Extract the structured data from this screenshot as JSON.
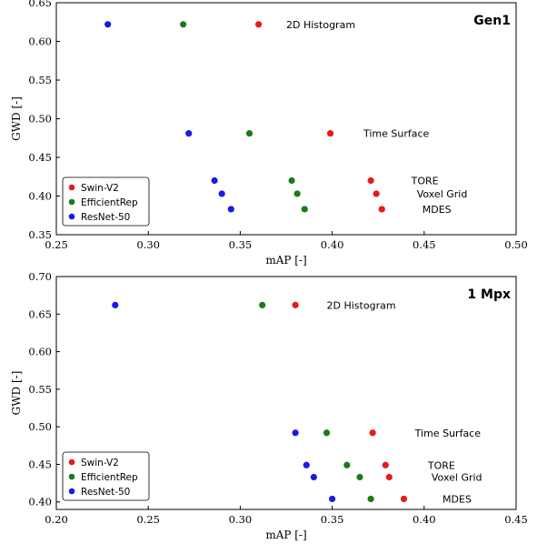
{
  "chart_data": [
    {
      "type": "scatter",
      "title": "Gen1",
      "xlabel": "mAP [-]",
      "ylabel": "GWD [-]",
      "xlim": [
        0.25,
        0.5
      ],
      "ylim": [
        0.35,
        0.65
      ],
      "xticks": [
        "0.25",
        "0.30",
        "0.35",
        "0.40",
        "0.45",
        "0.50"
      ],
      "yticks": [
        "0.35",
        "0.40",
        "0.45",
        "0.50",
        "0.55",
        "0.60",
        "0.65"
      ],
      "legend_position": "bottom-left",
      "series": [
        {
          "name": "Swin-V2",
          "color": "#e8191a",
          "points": [
            {
              "x": 0.36,
              "y": 0.622
            },
            {
              "x": 0.399,
              "y": 0.481
            },
            {
              "x": 0.421,
              "y": 0.42
            },
            {
              "x": 0.424,
              "y": 0.403
            },
            {
              "x": 0.427,
              "y": 0.383
            }
          ]
        },
        {
          "name": "EfficientRep",
          "color": "#1a7a1a",
          "points": [
            {
              "x": 0.319,
              "y": 0.622
            },
            {
              "x": 0.355,
              "y": 0.481
            },
            {
              "x": 0.378,
              "y": 0.42
            },
            {
              "x": 0.381,
              "y": 0.403
            },
            {
              "x": 0.385,
              "y": 0.383
            }
          ]
        },
        {
          "name": "ResNet-50",
          "color": "#1a1ae8",
          "points": [
            {
              "x": 0.278,
              "y": 0.622
            },
            {
              "x": 0.322,
              "y": 0.481
            },
            {
              "x": 0.336,
              "y": 0.42
            },
            {
              "x": 0.34,
              "y": 0.403
            },
            {
              "x": 0.345,
              "y": 0.383
            }
          ]
        }
      ],
      "annotations": [
        {
          "text": "2D Histogram",
          "x": 0.375,
          "y": 0.622
        },
        {
          "text": "Time Surface",
          "x": 0.417,
          "y": 0.481
        },
        {
          "text": "TORE",
          "x": 0.443,
          "y": 0.42
        },
        {
          "text": "Voxel Grid",
          "x": 0.446,
          "y": 0.403
        },
        {
          "text": "MDES",
          "x": 0.449,
          "y": 0.383
        }
      ]
    },
    {
      "type": "scatter",
      "title": "1 Mpx",
      "xlabel": "mAP [-]",
      "ylabel": "GWD [-]",
      "xlim": [
        0.2,
        0.45
      ],
      "ylim": [
        0.39,
        0.7
      ],
      "xticks": [
        "0.20",
        "0.25",
        "0.30",
        "0.35",
        "0.40",
        "0.45"
      ],
      "yticks": [
        "0.40",
        "0.45",
        "0.50",
        "0.55",
        "0.60",
        "0.65",
        "0.70"
      ],
      "legend_position": "bottom-left",
      "series": [
        {
          "name": "Swin-V2",
          "color": "#e8191a",
          "points": [
            {
              "x": 0.33,
              "y": 0.662
            },
            {
              "x": 0.372,
              "y": 0.492
            },
            {
              "x": 0.379,
              "y": 0.449
            },
            {
              "x": 0.381,
              "y": 0.433
            },
            {
              "x": 0.389,
              "y": 0.404
            }
          ]
        },
        {
          "name": "EfficientRep",
          "color": "#1a7a1a",
          "points": [
            {
              "x": 0.312,
              "y": 0.662
            },
            {
              "x": 0.347,
              "y": 0.492
            },
            {
              "x": 0.358,
              "y": 0.449
            },
            {
              "x": 0.365,
              "y": 0.433
            },
            {
              "x": 0.371,
              "y": 0.404
            }
          ]
        },
        {
          "name": "ResNet-50",
          "color": "#1a1ae8",
          "points": [
            {
              "x": 0.232,
              "y": 0.662
            },
            {
              "x": 0.33,
              "y": 0.492
            },
            {
              "x": 0.336,
              "y": 0.449
            },
            {
              "x": 0.34,
              "y": 0.433
            },
            {
              "x": 0.35,
              "y": 0.404
            }
          ]
        }
      ],
      "annotations": [
        {
          "text": "2D Histogram",
          "x": 0.347,
          "y": 0.662
        },
        {
          "text": "Time Surface",
          "x": 0.395,
          "y": 0.492
        },
        {
          "text": "TORE",
          "x": 0.402,
          "y": 0.449
        },
        {
          "text": "Voxel Grid",
          "x": 0.404,
          "y": 0.433
        },
        {
          "text": "MDES",
          "x": 0.41,
          "y": 0.404
        }
      ]
    }
  ]
}
